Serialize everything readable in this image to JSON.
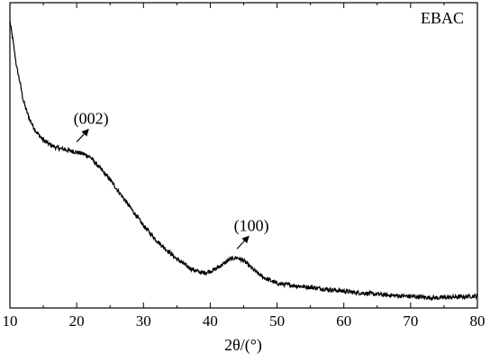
{
  "chart_data": {
    "type": "line",
    "title": "",
    "xlabel": "2θ/(°)",
    "ylabel": "",
    "xlim": [
      10,
      80
    ],
    "xticks": [
      10,
      20,
      30,
      40,
      50,
      60,
      70,
      80
    ],
    "yticks_shown": false,
    "grid": false,
    "legend_position": "top-right",
    "series": [
      {
        "name": "EBAC",
        "color": "#000000",
        "x": [
          10.0,
          10.5,
          11.0,
          11.5,
          12.0,
          12.5,
          13.0,
          14.0,
          15.0,
          16.0,
          17.0,
          18.0,
          19.0,
          20.0,
          21.0,
          22.0,
          23.0,
          24.0,
          25.0,
          26.0,
          27.0,
          28.0,
          29.0,
          30.0,
          31.0,
          32.0,
          33.0,
          34.0,
          35.0,
          36.0,
          37.0,
          38.0,
          39.0,
          40.0,
          41.0,
          42.0,
          43.0,
          44.0,
          45.0,
          46.0,
          47.0,
          48.0,
          49.0,
          50.0,
          52.0,
          54.0,
          56.0,
          58.0,
          60.0,
          62.0,
          64.0,
          66.0,
          68.0,
          70.0,
          72.0,
          74.0,
          76.0,
          78.0,
          80.0
        ],
        "y": [
          0.94,
          0.87,
          0.79,
          0.74,
          0.68,
          0.645,
          0.615,
          0.575,
          0.55,
          0.535,
          0.525,
          0.52,
          0.515,
          0.51,
          0.505,
          0.495,
          0.47,
          0.445,
          0.42,
          0.39,
          0.36,
          0.33,
          0.3,
          0.27,
          0.245,
          0.22,
          0.2,
          0.18,
          0.16,
          0.145,
          0.13,
          0.12,
          0.115,
          0.12,
          0.13,
          0.145,
          0.16,
          0.165,
          0.155,
          0.135,
          0.115,
          0.1,
          0.09,
          0.08,
          0.075,
          0.07,
          0.065,
          0.06,
          0.055,
          0.05,
          0.047,
          0.043,
          0.04,
          0.038,
          0.035,
          0.033,
          0.035,
          0.037,
          0.04
        ]
      }
    ],
    "annotations": [
      {
        "text": "(002)",
        "x": 20,
        "y": 0.52
      },
      {
        "text": "(100)",
        "x": 44,
        "y": 0.17
      }
    ]
  }
}
